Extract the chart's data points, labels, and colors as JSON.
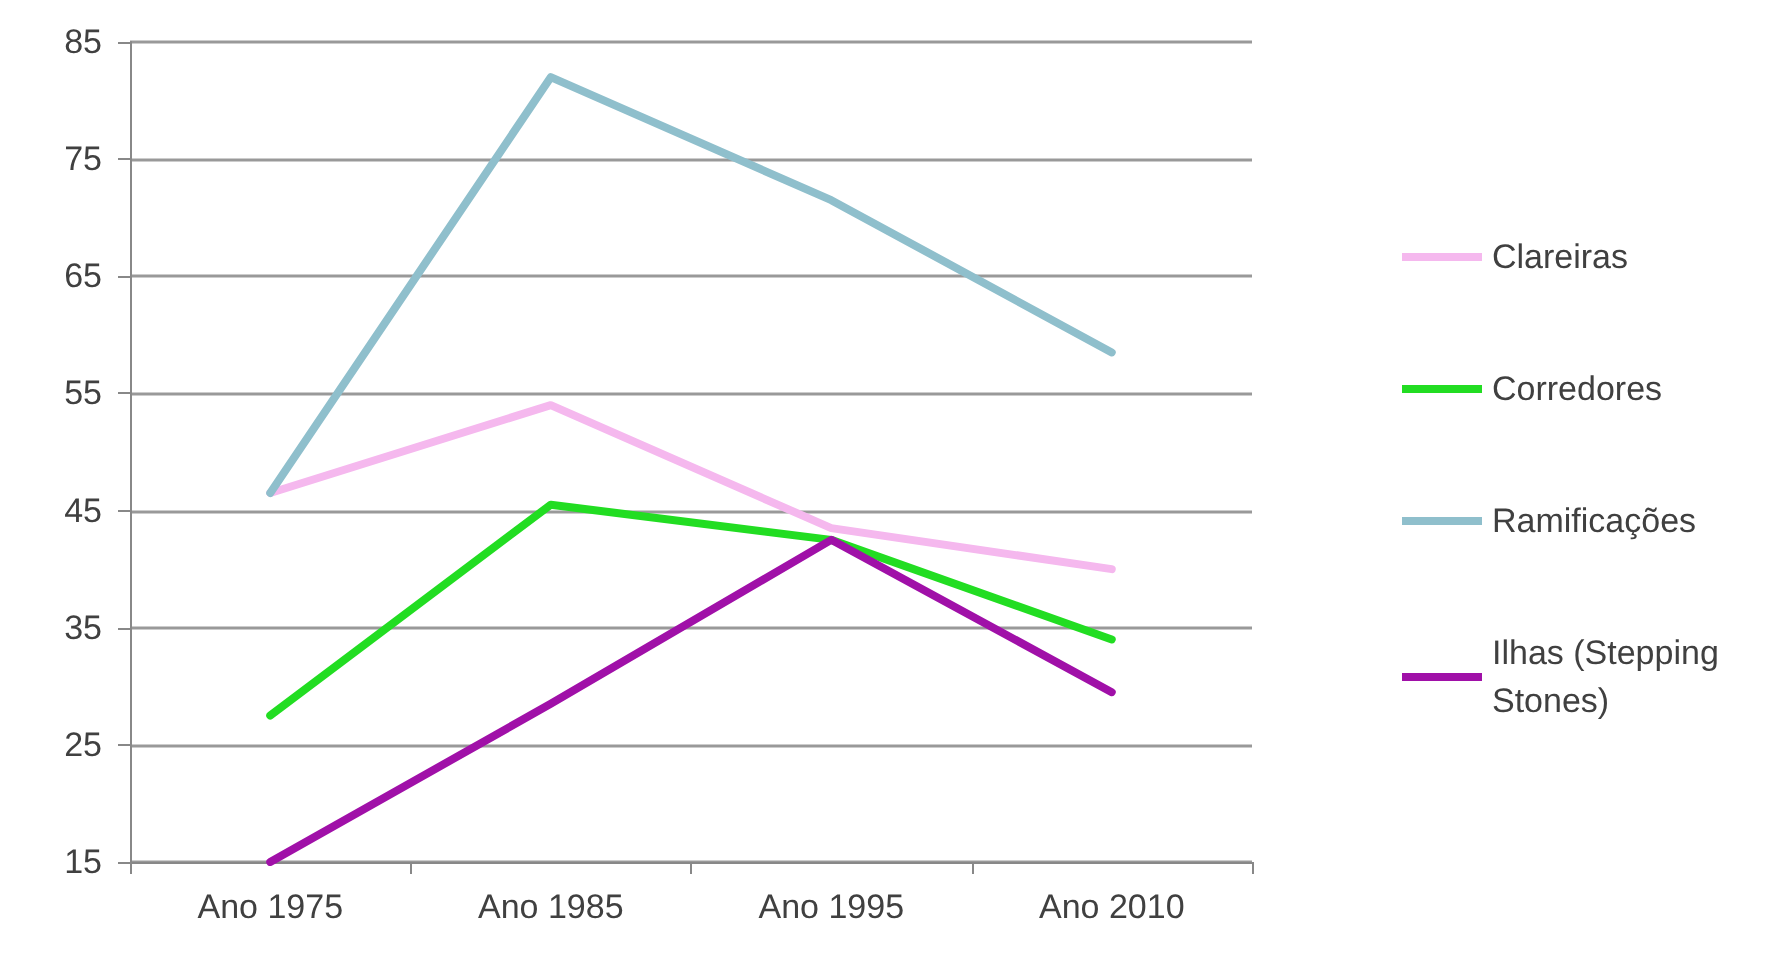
{
  "chart_data": {
    "type": "line",
    "categories": [
      "Ano 1975",
      "Ano 1985",
      "Ano 1995",
      "Ano 2010"
    ],
    "series": [
      {
        "name": "Clareiras",
        "color": "#f5b8ee",
        "values": [
          46.5,
          54,
          43.5,
          40
        ]
      },
      {
        "name": "Corredores",
        "color": "#22dd22",
        "values": [
          27.5,
          45.5,
          42.5,
          34
        ]
      },
      {
        "name": "Ramificações",
        "color": "#8fbfcc",
        "values": [
          46.5,
          82,
          71.5,
          58.5
        ]
      },
      {
        "name": "Ilhas (Stepping Stones)",
        "color": "#a010a8",
        "values": [
          15,
          28.5,
          42.5,
          29.5
        ]
      }
    ],
    "ylim": [
      15,
      85
    ],
    "yticks": [
      15,
      25,
      35,
      45,
      55,
      65,
      75,
      85
    ],
    "grid": "y",
    "legend": "right",
    "marker": "none",
    "line_style": "solid"
  }
}
